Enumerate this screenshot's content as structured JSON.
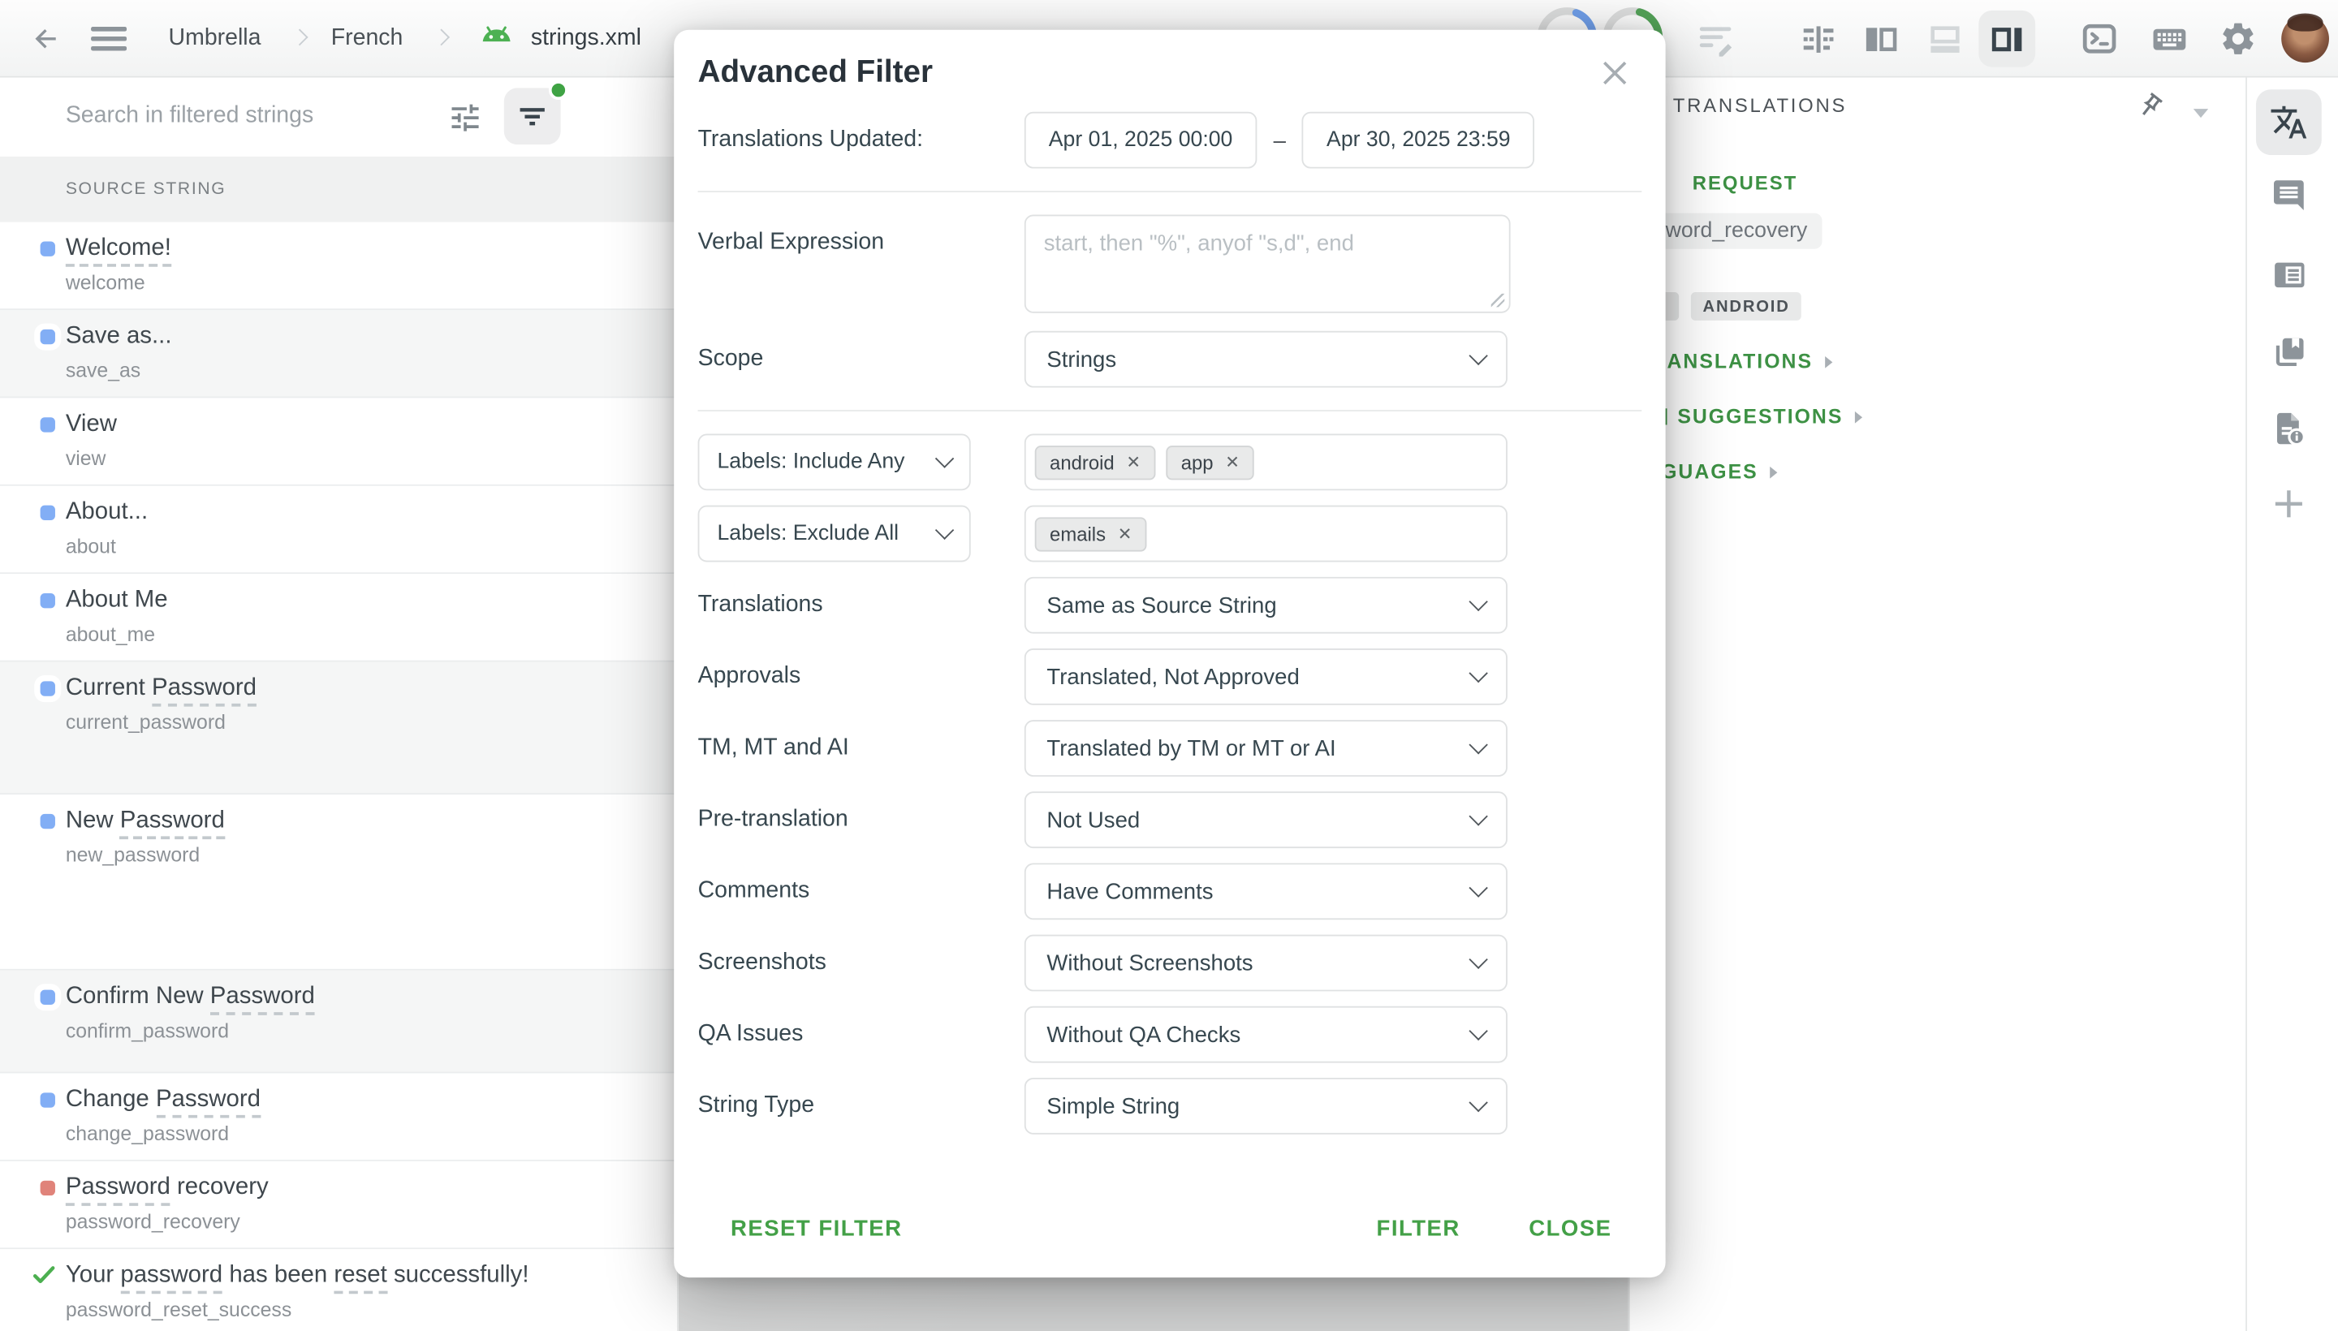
{
  "topbar": {
    "breadcrumb": {
      "project": "Umbrella",
      "language": "French",
      "file": "strings.xml"
    }
  },
  "left_panel": {
    "search_placeholder": "Search in filtered strings",
    "column_header": "SOURCE STRING",
    "strings": [
      {
        "parts": [
          {
            "t": "Welcome!",
            "u": true
          }
        ],
        "key": "welcome",
        "status": "translated",
        "h": 59,
        "stripe": false
      },
      {
        "parts": [
          {
            "t": "Save as..."
          }
        ],
        "key": "save_as",
        "status": "translated",
        "h": 59,
        "stripe": true
      },
      {
        "parts": [
          {
            "t": "View"
          }
        ],
        "key": "view",
        "status": "translated",
        "h": 59,
        "stripe": false
      },
      {
        "parts": [
          {
            "t": "About..."
          }
        ],
        "key": "about",
        "status": "translated",
        "h": 59,
        "stripe": false
      },
      {
        "parts": [
          {
            "t": "About Me"
          }
        ],
        "key": "about_me",
        "status": "translated",
        "h": 59,
        "stripe": false
      },
      {
        "parts": [
          {
            "t": "Current "
          },
          {
            "t": "Password",
            "u": true
          }
        ],
        "key": "current_password",
        "status": "translated",
        "h": 89,
        "stripe": true
      },
      {
        "parts": [
          {
            "t": "New "
          },
          {
            "t": "Password",
            "u": true
          }
        ],
        "key": "new_password",
        "status": "translated",
        "h": 118,
        "stripe": false
      },
      {
        "parts": [
          {
            "t": "Confirm New "
          },
          {
            "t": "Password",
            "u": true
          }
        ],
        "key": "confirm_password",
        "status": "translated",
        "h": 69,
        "stripe": true
      },
      {
        "parts": [
          {
            "t": "Change "
          },
          {
            "t": "Password",
            "u": true
          }
        ],
        "key": "change_password",
        "status": "translated",
        "h": 59,
        "stripe": false
      },
      {
        "parts": [
          {
            "t": "Password",
            "u": true
          },
          {
            "t": " recovery"
          }
        ],
        "key": "password_recovery",
        "status": "untranslated",
        "h": 59,
        "stripe": false
      },
      {
        "parts": [
          {
            "t": "Your "
          },
          {
            "t": "password",
            "u": true
          },
          {
            "t": " has been "
          },
          {
            "t": "reset",
            "u": true
          },
          {
            "t": " successfully!"
          }
        ],
        "key": "password_reset_success",
        "status": "approved",
        "h": 59,
        "stripe": false
      }
    ]
  },
  "modal": {
    "title": "Advanced Filter",
    "updated": {
      "label": "Translations Updated:",
      "from": "Apr 01, 2025 00:00",
      "separator": "–",
      "to": "Apr 30, 2025 23:59"
    },
    "verbal": {
      "label": "Verbal Expression",
      "placeholder": "start, then \"%\", anyof \"s,d\", end"
    },
    "scope": {
      "label": "Scope",
      "value": "Strings"
    },
    "labels_include": {
      "label": "Labels: Include Any",
      "tags": [
        "android",
        "app"
      ]
    },
    "labels_exclude": {
      "label": "Labels: Exclude All",
      "tags": [
        "emails"
      ]
    },
    "select_rows": [
      {
        "label": "Translations",
        "value": "Same as Source String"
      },
      {
        "label": "Approvals",
        "value": "Translated, Not Approved"
      },
      {
        "label": "TM, MT and AI",
        "value": "Translated by TM or MT or AI"
      },
      {
        "label": "Pre-translation",
        "value": "Not Used"
      },
      {
        "label": "Comments",
        "value": "Have Comments"
      },
      {
        "label": "Screenshots",
        "value": "Without Screenshots"
      },
      {
        "label": "QA Issues",
        "value": "Without QA Checks"
      },
      {
        "label": "String Type",
        "value": "Simple String"
      }
    ],
    "footer": {
      "reset": "RESET FILTER",
      "filter": "FILTER",
      "close": "CLOSE"
    }
  },
  "right_panel": {
    "header": "TRANSLATIONS",
    "request_label": "REQUEST",
    "string_key_fragment": "word_recovery",
    "file_badge": "ANDROID",
    "link_fragments": [
      "ANSLATIONS",
      "SUGGESTIONS",
      "GUAGES"
    ]
  },
  "colors": {
    "accent_green": "#43a047",
    "status_translated": "#82aef5",
    "status_untranslated": "#e0837a",
    "status_approved": "#4caf50",
    "progress_blue": "#6f9ee8",
    "progress_green": "#53a158"
  }
}
